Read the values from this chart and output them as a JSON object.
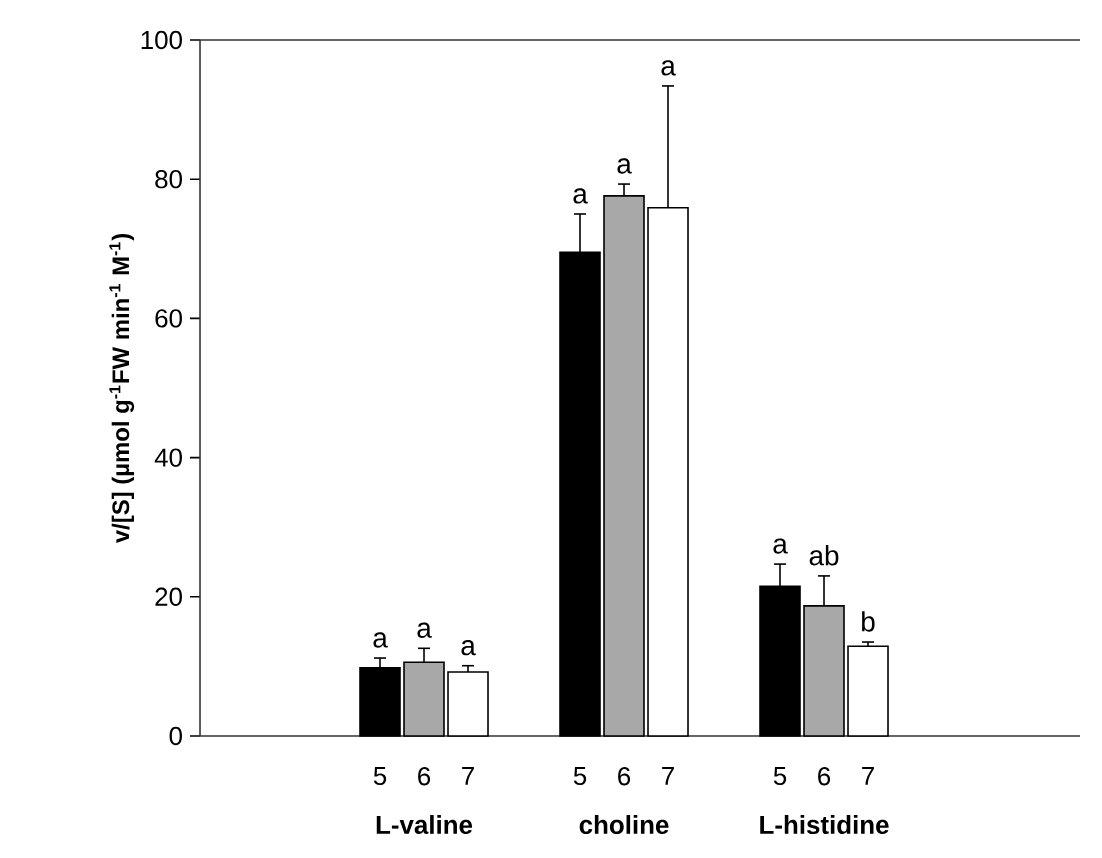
{
  "chart_data": {
    "type": "bar",
    "ylabel": "v/[S] (µmol g$^{-1}$FW min$^{-1}$ M$^{-1}$)",
    "categories": [
      "L-valine",
      "choline",
      "L-histidine"
    ],
    "series": [
      {
        "name": "5",
        "color": "#000000",
        "values": [
          9.8,
          69.5,
          21.5
        ],
        "errors": [
          1.4,
          5.5,
          3.2
        ]
      },
      {
        "name": "6",
        "color": "#a8a8a8",
        "values": [
          10.6,
          77.6,
          18.7
        ],
        "errors": [
          2,
          1.7,
          4.3
        ]
      },
      {
        "name": "7",
        "color": "#ffffff",
        "values": [
          9.2,
          75.9,
          12.9
        ],
        "errors": [
          0.9,
          17.5,
          0.6
        ]
      }
    ],
    "ylim": [
      0,
      100
    ],
    "yticks": [
      0,
      20,
      40,
      60,
      80,
      100
    ],
    "annotations": [
      "a",
      "a",
      "a",
      "a",
      "a",
      "a",
      "a",
      "ab",
      "b"
    ]
  }
}
